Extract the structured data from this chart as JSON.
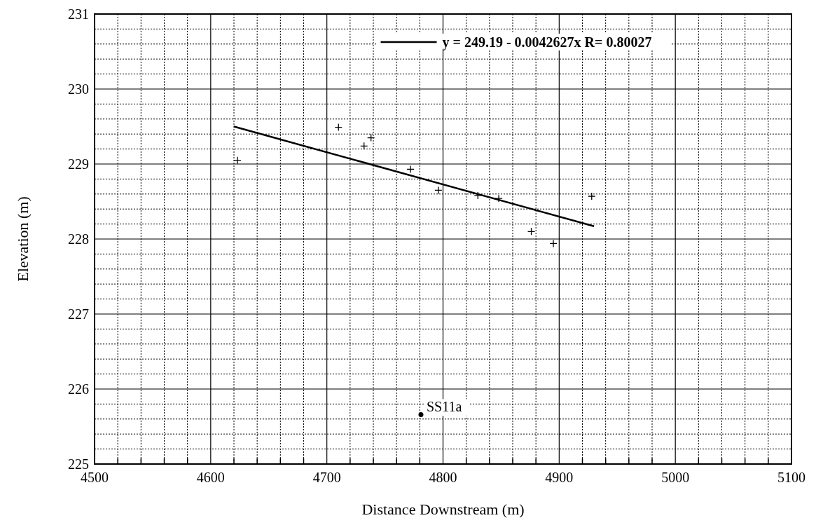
{
  "chart_data": {
    "type": "scatter",
    "xlabel": "Distance Downstream (m)",
    "ylabel": "Elevation (m)",
    "xlim": [
      4500,
      5100
    ],
    "xticks": [
      4500,
      4600,
      4700,
      4800,
      4900,
      5000,
      5100
    ],
    "ylim": [
      225,
      231
    ],
    "yticks": [
      225,
      226,
      227,
      228,
      229,
      230,
      231
    ],
    "grid": true,
    "legend": "top",
    "series": [
      {
        "marker": "cross",
        "color": "#000000",
        "x": [
          4623,
          4710,
          4732,
          4738,
          4772,
          4796,
          4830,
          4848,
          4876,
          4895,
          4928
        ],
        "values": [
          229.05,
          229.49,
          229.24,
          229.35,
          228.93,
          228.65,
          228.58,
          228.54,
          228.1,
          227.94,
          228.57
        ]
      },
      {
        "type": "line",
        "name": "y = 249.19 - 0.0042627x R= 0.80027",
        "color": "#000000",
        "x": [
          4620,
          4930
        ],
        "values": [
          229.5,
          228.17
        ]
      },
      {
        "marker": "circle",
        "color": "#000000",
        "x": [
          4781
        ],
        "values": [
          225.66
        ]
      }
    ],
    "annotations": [
      {
        "text": "SS11a",
        "x": 4781,
        "y": 225.66
      }
    ]
  }
}
